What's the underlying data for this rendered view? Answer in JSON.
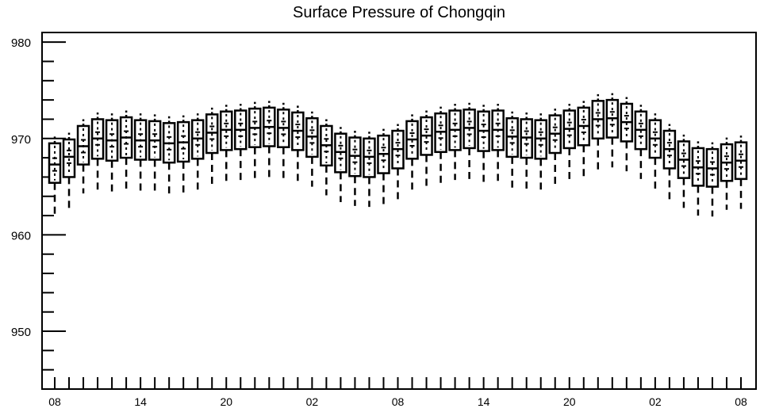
{
  "chart_data": {
    "type": "boxplot",
    "title": "Surface Pressure of Chongqin",
    "xlabel": "",
    "ylabel": "",
    "ylim": [
      944,
      981
    ],
    "yticks": [
      950,
      960,
      970,
      980
    ],
    "ytick_labels": [
      "950",
      "960",
      "970",
      "980"
    ],
    "xtick_labels": [
      "08",
      "14",
      "20",
      "02",
      "08",
      "14",
      "20",
      "02",
      "08"
    ],
    "xtick_positions": [
      0,
      6,
      12,
      18,
      24,
      30,
      36,
      42,
      48
    ],
    "grid": false,
    "legend": "none",
    "boxes": [
      {
        "x": 0,
        "whisker_low": 962.1,
        "q1": 965.4,
        "median": 967.3,
        "q3": 969.5,
        "whisker_high": 970.2
      },
      {
        "x": 1,
        "whisker_low": 962.8,
        "q1": 966.0,
        "median": 968.1,
        "q3": 969.9,
        "whisker_high": 970.6
      },
      {
        "x": 2,
        "whisker_low": 964.3,
        "q1": 967.3,
        "median": 969.2,
        "q3": 971.3,
        "whisker_high": 972.0
      },
      {
        "x": 3,
        "whisker_low": 964.7,
        "q1": 967.9,
        "median": 970.0,
        "q3": 972.0,
        "whisker_high": 972.7
      },
      {
        "x": 4,
        "whisker_low": 964.5,
        "q1": 967.7,
        "median": 969.8,
        "q3": 971.9,
        "whisker_high": 972.6
      },
      {
        "x": 5,
        "whisker_low": 964.8,
        "q1": 968.0,
        "median": 970.1,
        "q3": 972.2,
        "whisker_high": 972.9
      },
      {
        "x": 6,
        "whisker_low": 964.5,
        "q1": 967.8,
        "median": 969.8,
        "q3": 971.9,
        "whisker_high": 972.6
      },
      {
        "x": 7,
        "whisker_low": 964.5,
        "q1": 967.8,
        "median": 969.8,
        "q3": 971.8,
        "whisker_high": 972.5
      },
      {
        "x": 8,
        "whisker_low": 964.3,
        "q1": 967.5,
        "median": 969.5,
        "q3": 971.6,
        "whisker_high": 972.3
      },
      {
        "x": 9,
        "whisker_low": 964.4,
        "q1": 967.6,
        "median": 969.6,
        "q3": 971.7,
        "whisker_high": 972.4
      },
      {
        "x": 10,
        "whisker_low": 964.7,
        "q1": 967.9,
        "median": 970.0,
        "q3": 971.9,
        "whisker_high": 972.6
      },
      {
        "x": 11,
        "whisker_low": 965.3,
        "q1": 968.5,
        "median": 970.6,
        "q3": 972.5,
        "whisker_high": 973.2
      },
      {
        "x": 12,
        "whisker_low": 965.6,
        "q1": 968.8,
        "median": 970.9,
        "q3": 972.8,
        "whisker_high": 973.5
      },
      {
        "x": 13,
        "whisker_low": 965.7,
        "q1": 968.9,
        "median": 970.9,
        "q3": 972.9,
        "whisker_high": 973.6
      },
      {
        "x": 14,
        "whisker_low": 965.9,
        "q1": 969.1,
        "median": 971.1,
        "q3": 973.1,
        "whisker_high": 973.8
      },
      {
        "x": 15,
        "whisker_low": 966.0,
        "q1": 969.2,
        "median": 971.2,
        "q3": 973.2,
        "whisker_high": 973.9
      },
      {
        "x": 16,
        "whisker_low": 965.9,
        "q1": 969.1,
        "median": 971.1,
        "q3": 973.0,
        "whisker_high": 973.7
      },
      {
        "x": 17,
        "whisker_low": 965.6,
        "q1": 968.8,
        "median": 970.8,
        "q3": 972.7,
        "whisker_high": 973.4
      },
      {
        "x": 18,
        "whisker_low": 965.0,
        "q1": 968.1,
        "median": 970.2,
        "q3": 972.1,
        "whisker_high": 972.8
      },
      {
        "x": 19,
        "whisker_low": 964.1,
        "q1": 967.2,
        "median": 969.3,
        "q3": 971.3,
        "whisker_high": 972.0
      },
      {
        "x": 20,
        "whisker_low": 963.4,
        "q1": 966.5,
        "median": 968.6,
        "q3": 970.5,
        "whisker_high": 971.2
      },
      {
        "x": 21,
        "whisker_low": 963.0,
        "q1": 966.1,
        "median": 968.2,
        "q3": 970.1,
        "whisker_high": 970.8
      },
      {
        "x": 22,
        "whisker_low": 962.9,
        "q1": 966.0,
        "median": 968.1,
        "q3": 970.0,
        "whisker_high": 970.7
      },
      {
        "x": 23,
        "whisker_low": 963.2,
        "q1": 966.4,
        "median": 968.4,
        "q3": 970.3,
        "whisker_high": 971.0
      },
      {
        "x": 24,
        "whisker_low": 963.7,
        "q1": 966.9,
        "median": 968.9,
        "q3": 970.8,
        "whisker_high": 971.5
      },
      {
        "x": 25,
        "whisker_low": 964.7,
        "q1": 967.9,
        "median": 969.9,
        "q3": 971.8,
        "whisker_high": 972.5
      },
      {
        "x": 26,
        "whisker_low": 965.0,
        "q1": 968.3,
        "median": 970.3,
        "q3": 972.2,
        "whisker_high": 972.9
      },
      {
        "x": 27,
        "whisker_low": 965.4,
        "q1": 968.6,
        "median": 970.7,
        "q3": 972.6,
        "whisker_high": 973.3
      },
      {
        "x": 28,
        "whisker_low": 965.7,
        "q1": 968.8,
        "median": 970.9,
        "q3": 972.9,
        "whisker_high": 973.6
      },
      {
        "x": 29,
        "whisker_low": 965.8,
        "q1": 969.0,
        "median": 971.1,
        "q3": 973.0,
        "whisker_high": 973.7
      },
      {
        "x": 30,
        "whisker_low": 965.5,
        "q1": 968.7,
        "median": 970.8,
        "q3": 972.8,
        "whisker_high": 973.5
      },
      {
        "x": 31,
        "whisker_low": 965.6,
        "q1": 968.8,
        "median": 970.9,
        "q3": 972.9,
        "whisker_high": 973.6
      },
      {
        "x": 32,
        "whisker_low": 964.9,
        "q1": 968.1,
        "median": 970.2,
        "q3": 972.1,
        "whisker_high": 972.8
      },
      {
        "x": 33,
        "whisker_low": 964.8,
        "q1": 968.0,
        "median": 970.1,
        "q3": 972.0,
        "whisker_high": 972.7
      },
      {
        "x": 34,
        "whisker_low": 964.7,
        "q1": 967.9,
        "median": 970.0,
        "q3": 971.9,
        "whisker_high": 972.6
      },
      {
        "x": 35,
        "whisker_low": 965.3,
        "q1": 968.5,
        "median": 970.5,
        "q3": 972.4,
        "whisker_high": 973.1
      },
      {
        "x": 36,
        "whisker_low": 965.8,
        "q1": 969.0,
        "median": 971.0,
        "q3": 972.9,
        "whisker_high": 973.6
      },
      {
        "x": 37,
        "whisker_low": 966.1,
        "q1": 969.3,
        "median": 971.3,
        "q3": 973.2,
        "whisker_high": 973.9
      },
      {
        "x": 38,
        "whisker_low": 966.8,
        "q1": 970.0,
        "median": 972.0,
        "q3": 973.9,
        "whisker_high": 974.6
      },
      {
        "x": 39,
        "whisker_low": 967.0,
        "q1": 970.1,
        "median": 972.1,
        "q3": 974.0,
        "whisker_high": 974.7
      },
      {
        "x": 40,
        "whisker_low": 966.6,
        "q1": 969.7,
        "median": 971.7,
        "q3": 973.6,
        "whisker_high": 974.3
      },
      {
        "x": 41,
        "whisker_low": 965.8,
        "q1": 968.9,
        "median": 970.9,
        "q3": 972.8,
        "whisker_high": 973.5
      },
      {
        "x": 42,
        "whisker_low": 964.8,
        "q1": 968.0,
        "median": 970.0,
        "q3": 971.9,
        "whisker_high": 972.6
      },
      {
        "x": 43,
        "whisker_low": 963.7,
        "q1": 966.9,
        "median": 968.9,
        "q3": 970.8,
        "whisker_high": 971.5
      },
      {
        "x": 44,
        "whisker_low": 962.8,
        "q1": 965.9,
        "median": 967.8,
        "q3": 969.7,
        "whisker_high": 970.4
      },
      {
        "x": 45,
        "whisker_low": 962.0,
        "q1": 965.1,
        "median": 967.0,
        "q3": 969.0,
        "whisker_high": 969.7
      },
      {
        "x": 46,
        "whisker_low": 961.9,
        "q1": 965.0,
        "median": 966.9,
        "q3": 968.9,
        "whisker_high": 969.6
      },
      {
        "x": 47,
        "whisker_low": 962.6,
        "q1": 965.6,
        "median": 967.5,
        "q3": 969.4,
        "whisker_high": 970.1
      },
      {
        "x": 48,
        "whisker_low": 962.7,
        "q1": 965.8,
        "median": 967.7,
        "q3": 969.6,
        "whisker_high": 970.3
      }
    ]
  }
}
